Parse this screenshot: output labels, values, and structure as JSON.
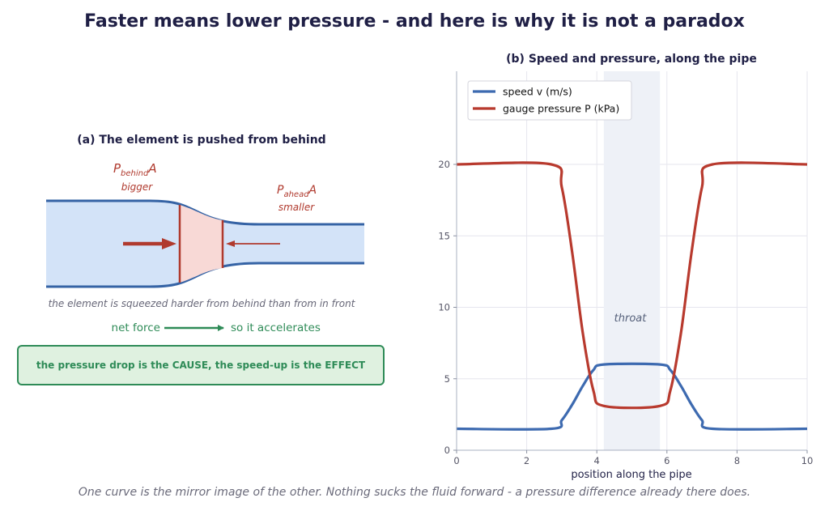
{
  "header": {
    "title": "Faster means lower pressure - and here is why it is not a paradox"
  },
  "footer": {
    "caption": "One curve is the mirror image of the other. Nothing sucks the fluid forward - a pressure difference already there does."
  },
  "panel_a": {
    "title": "(a) The element is pushed from behind",
    "force_behind": {
      "symbol": "P",
      "subscript": "behind",
      "area": "A",
      "note": "bigger"
    },
    "force_ahead": {
      "symbol": "P",
      "subscript": "ahead",
      "area": "A",
      "note": "smaller"
    },
    "squeeze_caption": "the element is squeezed harder from behind than from in front",
    "net_force_label": "net force",
    "accelerates_label": "so it accelerates",
    "callout": "the pressure drop is the CAUSE, the speed-up is the EFFECT",
    "colors": {
      "pipe_fill": "#d3e3f8",
      "pipe_wall": "#3563a5",
      "element_fill": "#f8d9d6",
      "force": "#b03a2e",
      "green": "#2e8b57"
    }
  },
  "chart_data": {
    "type": "line",
    "title": "(b) Speed and pressure, along the pipe",
    "xlabel": "position along the pipe",
    "ylabel": "",
    "xlim": [
      0,
      10
    ],
    "ylim": [
      0,
      20
    ],
    "xticks": [
      0,
      2,
      4,
      6,
      8,
      10
    ],
    "yticks": [
      0,
      5,
      10,
      15,
      20
    ],
    "grid": true,
    "legend_position": "top-left",
    "shaded_region": {
      "x": [
        4.2,
        5.8
      ],
      "label": "throat"
    },
    "series": [
      {
        "name": "speed v  (m/s)",
        "color": "#3d6ab0",
        "x": [
          0,
          2.7,
          3.0,
          3.3,
          3.6,
          3.9,
          4.2,
          5.8,
          6.1,
          6.4,
          6.7,
          7.0,
          7.3,
          10
        ],
        "values": [
          1.5,
          1.5,
          2.1,
          3.2,
          4.5,
          5.6,
          6.0,
          6.0,
          5.6,
          4.5,
          3.2,
          2.1,
          1.5,
          1.5
        ]
      },
      {
        "name": "gauge pressure P  (kPa)",
        "color": "#b83a2e",
        "x": [
          0,
          2.7,
          3.0,
          3.3,
          3.6,
          3.9,
          4.2,
          5.8,
          6.1,
          6.4,
          6.7,
          7.0,
          7.3,
          10
        ],
        "values": [
          20,
          20,
          18.4,
          13.8,
          8.2,
          4.2,
          3.1,
          3.1,
          4.2,
          8.2,
          13.8,
          18.4,
          20,
          20
        ]
      }
    ]
  }
}
